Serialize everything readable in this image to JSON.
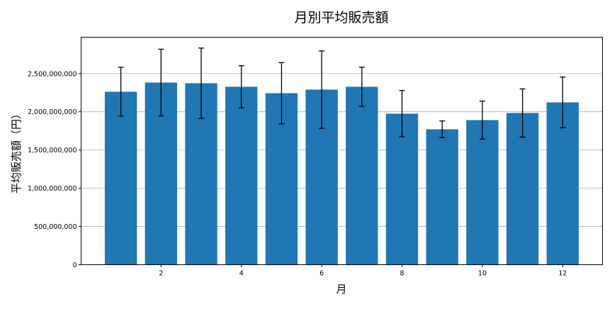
{
  "chart_data": {
    "type": "bar",
    "title": "月別平均販売額",
    "xlabel": "月",
    "ylabel": "平均販売額（円）",
    "categories": [
      1,
      2,
      3,
      4,
      5,
      6,
      7,
      8,
      9,
      10,
      11,
      12
    ],
    "values": [
      2262000000,
      2382000000,
      2373000000,
      2327000000,
      2243000000,
      2290000000,
      2327000000,
      1975000000,
      1771000000,
      1891000000,
      1984000000,
      2123000000
    ],
    "error": [
      320000000,
      436000000,
      460000000,
      275000000,
      400000000,
      506000000,
      256000000,
      303000000,
      109000000,
      248000000,
      315000000,
      331000000
    ],
    "xlim": [
      0.01,
      12.99
    ],
    "ylim": [
      0,
      2975000000
    ],
    "xticks": [
      2,
      4,
      6,
      8,
      10,
      12
    ],
    "xtick_labels": [
      "2",
      "4",
      "6",
      "8",
      "10",
      "12"
    ],
    "yticks": [
      0,
      500000000,
      1000000000,
      1500000000,
      2000000000,
      2500000000
    ],
    "ytick_labels": [
      "0",
      "500,000,000",
      "1,000,000,000",
      "1,500,000,000",
      "2,000,000,000",
      "2,500,000,000"
    ],
    "grid": "y",
    "bar_color": "#1f77b4",
    "error_color": "#000000"
  }
}
